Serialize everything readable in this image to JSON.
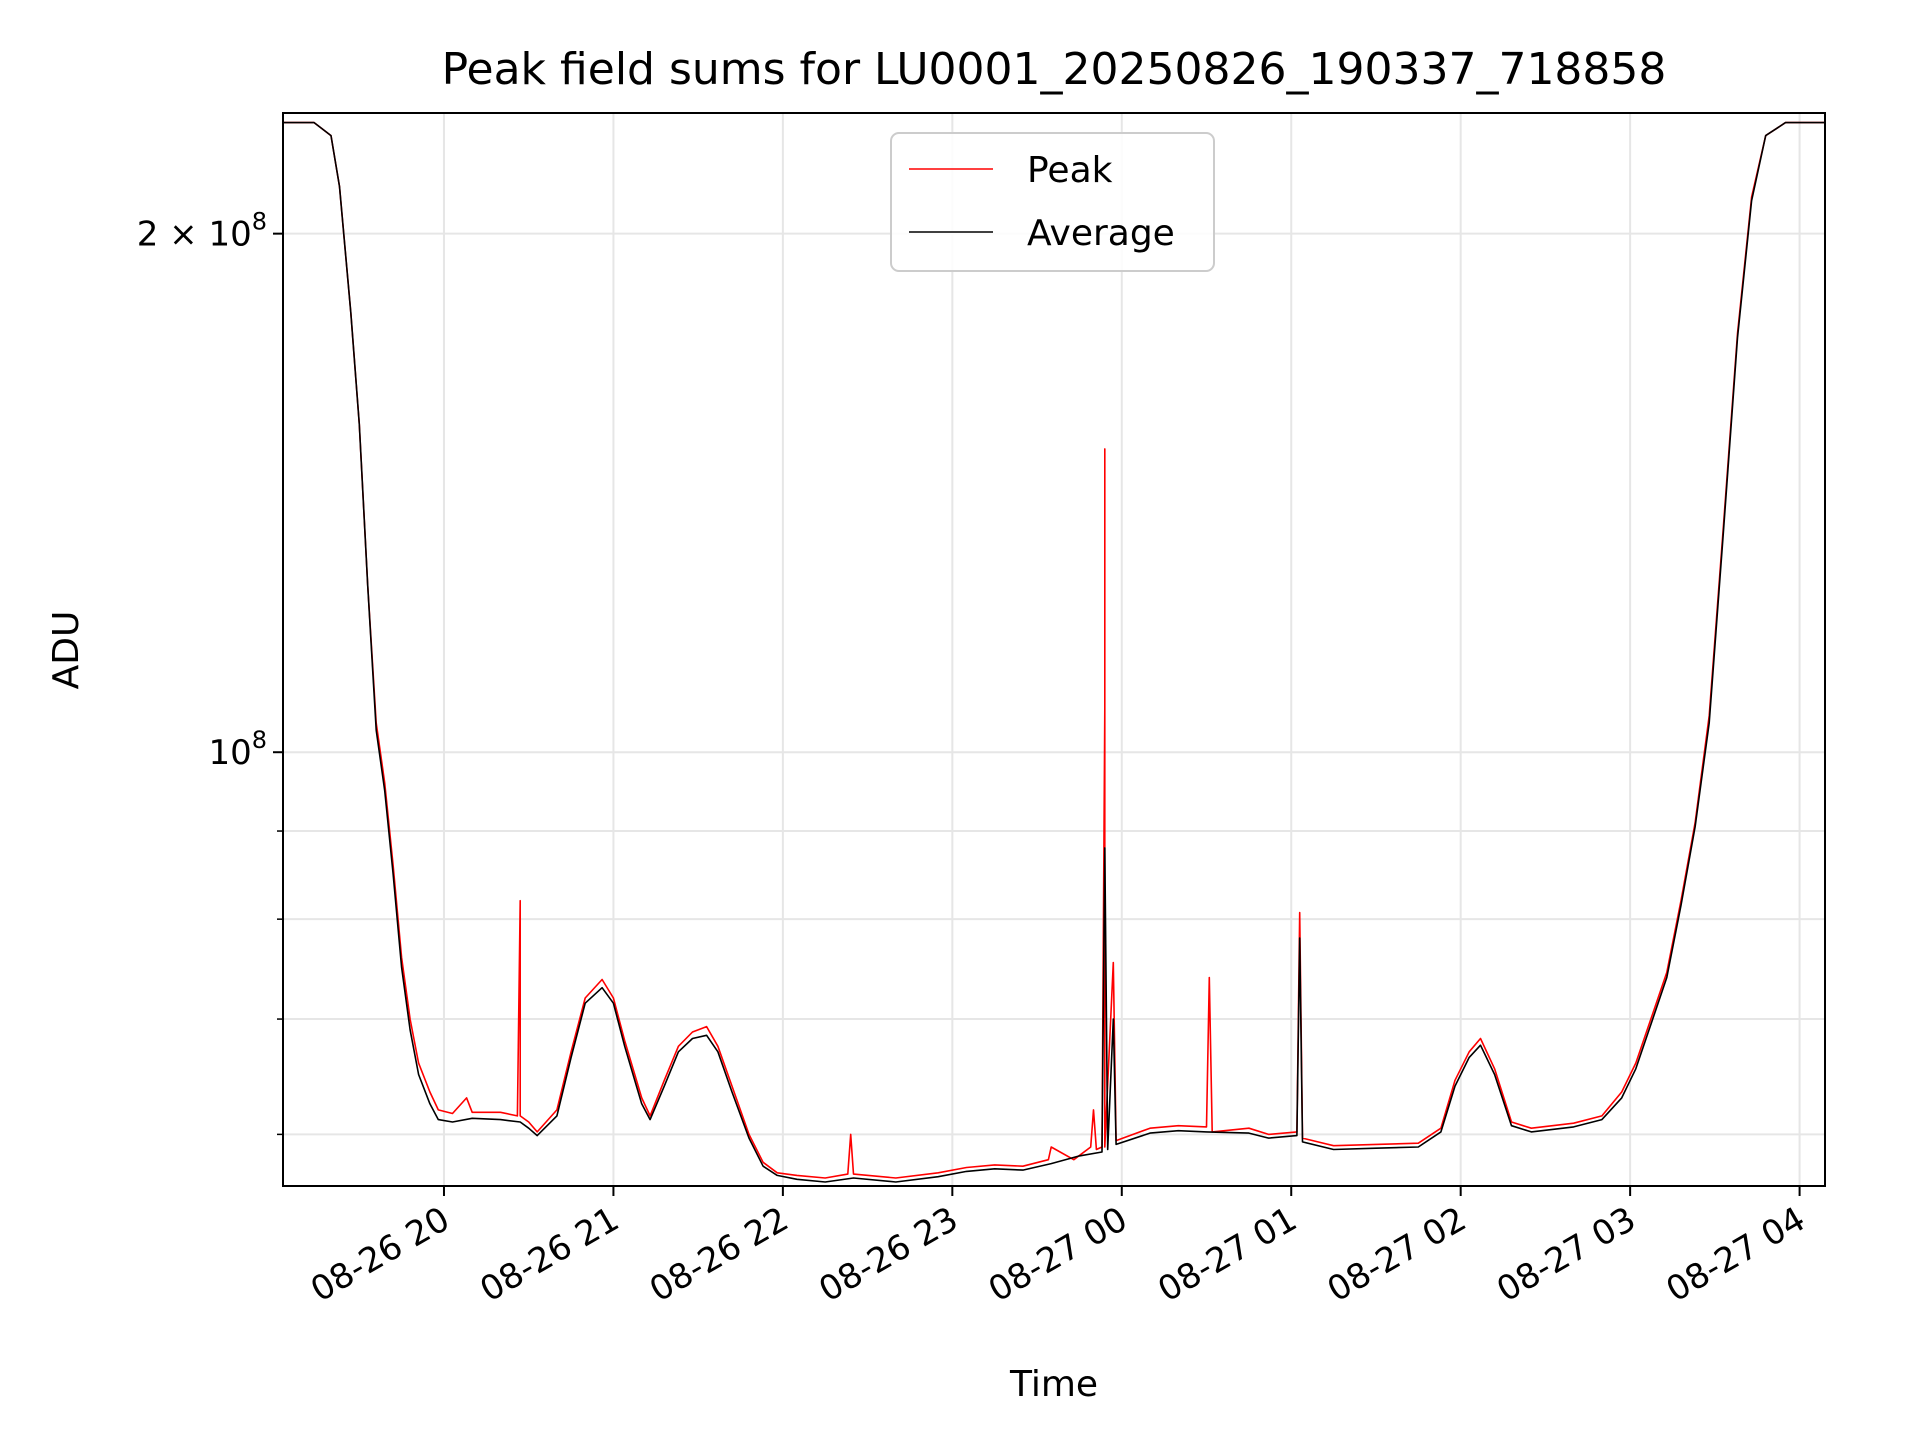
{
  "chart_data": {
    "type": "line",
    "title": "Peak field sums for LU0001_20250826_190337_718858",
    "xlabel": "Time",
    "ylabel": "ADU",
    "yscale": "log",
    "xlim": [
      "2025-08-26 19:03",
      "2025-08-27 04:09"
    ],
    "ylim": [
      56000000,
      235000000
    ],
    "grid": true,
    "legend_position": "upper center",
    "x_ticks": [
      {
        "value": "2025-08-26 20:00",
        "label": "08-26 20"
      },
      {
        "value": "2025-08-26 21:00",
        "label": "08-26 21"
      },
      {
        "value": "2025-08-26 22:00",
        "label": "08-26 22"
      },
      {
        "value": "2025-08-26 23:00",
        "label": "08-26 23"
      },
      {
        "value": "2025-08-27 00:00",
        "label": "08-27 00"
      },
      {
        "value": "2025-08-27 01:00",
        "label": "08-27 01"
      },
      {
        "value": "2025-08-27 02:00",
        "label": "08-27 02"
      },
      {
        "value": "2025-08-27 03:00",
        "label": "08-27 03"
      },
      {
        "value": "2025-08-27 04:00",
        "label": "08-27 04"
      }
    ],
    "y_major_ticks": [
      {
        "value": 100000000,
        "label": "10",
        "exp": "8",
        "prefix": ""
      },
      {
        "value": 200000000,
        "label": "10",
        "exp": "8",
        "prefix": "2 × "
      }
    ],
    "y_minor_ticks": [
      60000000,
      70000000,
      80000000,
      90000000
    ],
    "series": [
      {
        "name": "Peak",
        "color": "#ff0000",
        "points": [
          [
            "2025-08-26 19:03",
            232000000
          ],
          [
            "2025-08-26 19:14",
            232000000
          ],
          [
            "2025-08-26 19:20",
            228000000
          ],
          [
            "2025-08-26 19:23",
            213000000
          ],
          [
            "2025-08-26 19:27",
            180000000
          ],
          [
            "2025-08-26 19:30",
            155000000
          ],
          [
            "2025-08-26 19:33",
            125000000
          ],
          [
            "2025-08-26 19:36",
            104000000
          ],
          [
            "2025-08-26 19:39",
            96000000
          ],
          [
            "2025-08-26 19:42",
            86000000
          ],
          [
            "2025-08-26 19:45",
            76000000
          ],
          [
            "2025-08-26 19:48",
            70000000
          ],
          [
            "2025-08-26 19:51",
            66000000
          ],
          [
            "2025-08-26 19:55",
            63500000
          ],
          [
            "2025-08-26 19:58",
            62000000
          ],
          [
            "2025-08-26 20:03",
            61700000
          ],
          [
            "2025-08-26 20:08",
            63000000
          ],
          [
            "2025-08-26 20:10",
            61800000
          ],
          [
            "2025-08-26 20:20",
            61800000
          ],
          [
            "2025-08-26 20:26",
            61500000
          ],
          [
            "2025-08-26 20:27",
            82000000
          ],
          [
            "2025-08-26 20:27",
            61500000
          ],
          [
            "2025-08-26 20:30",
            61000000
          ],
          [
            "2025-08-26 20:33",
            60200000
          ],
          [
            "2025-08-26 20:40",
            62000000
          ],
          [
            "2025-08-26 20:45",
            67000000
          ],
          [
            "2025-08-26 20:50",
            72000000
          ],
          [
            "2025-08-26 20:56",
            73800000
          ],
          [
            "2025-08-26 21:00",
            72000000
          ],
          [
            "2025-08-26 21:04",
            68000000
          ],
          [
            "2025-08-26 21:10",
            63000000
          ],
          [
            "2025-08-26 21:13",
            61500000
          ],
          [
            "2025-08-26 21:18",
            64500000
          ],
          [
            "2025-08-26 21:23",
            67500000
          ],
          [
            "2025-08-26 21:28",
            68800000
          ],
          [
            "2025-08-26 21:33",
            69300000
          ],
          [
            "2025-08-26 21:37",
            67500000
          ],
          [
            "2025-08-26 21:42",
            64000000
          ],
          [
            "2025-08-26 21:48",
            60000000
          ],
          [
            "2025-08-26 21:53",
            57800000
          ],
          [
            "2025-08-26 21:58",
            57000000
          ],
          [
            "2025-08-26 22:05",
            56800000
          ],
          [
            "2025-08-26 22:15",
            56600000
          ],
          [
            "2025-08-26 22:23",
            56900000
          ],
          [
            "2025-08-26 22:24",
            60000000
          ],
          [
            "2025-08-26 22:25",
            56900000
          ],
          [
            "2025-08-26 22:40",
            56600000
          ],
          [
            "2025-08-26 22:55",
            57000000
          ],
          [
            "2025-08-26 23:05",
            57400000
          ],
          [
            "2025-08-26 23:15",
            57600000
          ],
          [
            "2025-08-26 23:25",
            57500000
          ],
          [
            "2025-08-26 23:34",
            58000000
          ],
          [
            "2025-08-26 23:35",
            59000000
          ],
          [
            "2025-08-26 23:43",
            58000000
          ],
          [
            "2025-08-26 23:49",
            59000000
          ],
          [
            "2025-08-26 23:50",
            62000000
          ],
          [
            "2025-08-26 23:51",
            58800000
          ],
          [
            "2025-08-26 23:53",
            59000000
          ],
          [
            "2025-08-26 23:54",
            106000000
          ],
          [
            "2025-08-26 23:54",
            150000000
          ],
          [
            "2025-08-26 23:54",
            59000000
          ],
          [
            "2025-08-26 23:57",
            75500000
          ],
          [
            "2025-08-26 23:58",
            59500000
          ],
          [
            "2025-08-27 00:10",
            60500000
          ],
          [
            "2025-08-27 00:20",
            60700000
          ],
          [
            "2025-08-27 00:30",
            60600000
          ],
          [
            "2025-08-27 00:31",
            74000000
          ],
          [
            "2025-08-27 00:32",
            60200000
          ],
          [
            "2025-08-27 00:45",
            60500000
          ],
          [
            "2025-08-27 00:52",
            60000000
          ],
          [
            "2025-08-27 01:02",
            60200000
          ],
          [
            "2025-08-27 01:03",
            80700000
          ],
          [
            "2025-08-27 01:04",
            59700000
          ],
          [
            "2025-08-27 01:15",
            59100000
          ],
          [
            "2025-08-27 01:30",
            59200000
          ],
          [
            "2025-08-27 01:45",
            59300000
          ],
          [
            "2025-08-27 01:53",
            60500000
          ],
          [
            "2025-08-27 01:58",
            64500000
          ],
          [
            "2025-08-27 02:03",
            67000000
          ],
          [
            "2025-08-27 02:07",
            68200000
          ],
          [
            "2025-08-27 02:12",
            65500000
          ],
          [
            "2025-08-27 02:18",
            61000000
          ],
          [
            "2025-08-27 02:25",
            60500000
          ],
          [
            "2025-08-27 02:40",
            60900000
          ],
          [
            "2025-08-27 02:50",
            61500000
          ],
          [
            "2025-08-27 02:57",
            63500000
          ],
          [
            "2025-08-27 03:02",
            66000000
          ],
          [
            "2025-08-27 03:08",
            70500000
          ],
          [
            "2025-08-27 03:13",
            74500000
          ],
          [
            "2025-08-27 03:18",
            82000000
          ],
          [
            "2025-08-27 03:23",
            91000000
          ],
          [
            "2025-08-27 03:28",
            105000000
          ],
          [
            "2025-08-27 03:33",
            135000000
          ],
          [
            "2025-08-27 03:38",
            175000000
          ],
          [
            "2025-08-27 03:43",
            210000000
          ],
          [
            "2025-08-27 03:48",
            228000000
          ],
          [
            "2025-08-27 03:55",
            232000000
          ],
          [
            "2025-08-27 04:09",
            232000000
          ]
        ]
      },
      {
        "name": "Average",
        "color": "#000000",
        "points": [
          [
            "2025-08-26 19:03",
            232000000
          ],
          [
            "2025-08-26 19:14",
            232000000
          ],
          [
            "2025-08-26 19:20",
            228000000
          ],
          [
            "2025-08-26 19:23",
            213000000
          ],
          [
            "2025-08-26 19:27",
            180000000
          ],
          [
            "2025-08-26 19:30",
            155000000
          ],
          [
            "2025-08-26 19:33",
            125000000
          ],
          [
            "2025-08-26 19:36",
            103000000
          ],
          [
            "2025-08-26 19:39",
            95000000
          ],
          [
            "2025-08-26 19:42",
            85000000
          ],
          [
            "2025-08-26 19:45",
            75000000
          ],
          [
            "2025-08-26 19:48",
            69000000
          ],
          [
            "2025-08-26 19:51",
            65000000
          ],
          [
            "2025-08-26 19:55",
            62500000
          ],
          [
            "2025-08-26 19:58",
            61200000
          ],
          [
            "2025-08-26 20:03",
            61000000
          ],
          [
            "2025-08-26 20:10",
            61300000
          ],
          [
            "2025-08-26 20:20",
            61200000
          ],
          [
            "2025-08-26 20:27",
            61000000
          ],
          [
            "2025-08-26 20:30",
            60500000
          ],
          [
            "2025-08-26 20:33",
            59900000
          ],
          [
            "2025-08-26 20:40",
            61500000
          ],
          [
            "2025-08-26 20:45",
            66500000
          ],
          [
            "2025-08-26 20:50",
            71500000
          ],
          [
            "2025-08-26 20:56",
            73000000
          ],
          [
            "2025-08-26 21:00",
            71500000
          ],
          [
            "2025-08-26 21:04",
            67500000
          ],
          [
            "2025-08-26 21:10",
            62500000
          ],
          [
            "2025-08-26 21:13",
            61200000
          ],
          [
            "2025-08-26 21:18",
            64000000
          ],
          [
            "2025-08-26 21:23",
            67000000
          ],
          [
            "2025-08-26 21:28",
            68200000
          ],
          [
            "2025-08-26 21:33",
            68500000
          ],
          [
            "2025-08-26 21:37",
            67000000
          ],
          [
            "2025-08-26 21:42",
            63500000
          ],
          [
            "2025-08-26 21:48",
            59700000
          ],
          [
            "2025-08-26 21:53",
            57500000
          ],
          [
            "2025-08-26 21:58",
            56800000
          ],
          [
            "2025-08-26 22:05",
            56500000
          ],
          [
            "2025-08-26 22:15",
            56300000
          ],
          [
            "2025-08-26 22:25",
            56600000
          ],
          [
            "2025-08-26 22:40",
            56300000
          ],
          [
            "2025-08-26 22:55",
            56700000
          ],
          [
            "2025-08-26 23:05",
            57100000
          ],
          [
            "2025-08-26 23:15",
            57300000
          ],
          [
            "2025-08-26 23:25",
            57200000
          ],
          [
            "2025-08-26 23:35",
            57700000
          ],
          [
            "2025-08-26 23:45",
            58300000
          ],
          [
            "2025-08-26 23:53",
            58600000
          ],
          [
            "2025-08-26 23:54",
            88000000
          ],
          [
            "2025-08-26 23:55",
            58800000
          ],
          [
            "2025-08-26 23:57",
            70000000
          ],
          [
            "2025-08-26 23:58",
            59200000
          ],
          [
            "2025-08-27 00:10",
            60100000
          ],
          [
            "2025-08-27 00:20",
            60300000
          ],
          [
            "2025-08-27 00:30",
            60200000
          ],
          [
            "2025-08-27 00:45",
            60100000
          ],
          [
            "2025-08-27 00:52",
            59700000
          ],
          [
            "2025-08-27 01:02",
            59900000
          ],
          [
            "2025-08-27 01:03",
            78000000
          ],
          [
            "2025-08-27 01:04",
            59400000
          ],
          [
            "2025-08-27 01:15",
            58800000
          ],
          [
            "2025-08-27 01:30",
            58900000
          ],
          [
            "2025-08-27 01:45",
            59000000
          ],
          [
            "2025-08-27 01:53",
            60200000
          ],
          [
            "2025-08-27 01:58",
            64000000
          ],
          [
            "2025-08-27 02:03",
            66500000
          ],
          [
            "2025-08-27 02:07",
            67600000
          ],
          [
            "2025-08-27 02:12",
            65000000
          ],
          [
            "2025-08-27 02:18",
            60700000
          ],
          [
            "2025-08-27 02:25",
            60200000
          ],
          [
            "2025-08-27 02:40",
            60600000
          ],
          [
            "2025-08-27 02:50",
            61200000
          ],
          [
            "2025-08-27 02:57",
            63000000
          ],
          [
            "2025-08-27 03:02",
            65500000
          ],
          [
            "2025-08-27 03:08",
            70000000
          ],
          [
            "2025-08-27 03:13",
            74000000
          ],
          [
            "2025-08-27 03:18",
            81500000
          ],
          [
            "2025-08-27 03:23",
            90500000
          ],
          [
            "2025-08-27 03:28",
            104000000
          ],
          [
            "2025-08-27 03:33",
            134000000
          ],
          [
            "2025-08-27 03:38",
            174000000
          ],
          [
            "2025-08-27 03:43",
            209000000
          ],
          [
            "2025-08-27 03:48",
            228000000
          ],
          [
            "2025-08-27 03:55",
            232000000
          ],
          [
            "2025-08-27 04:09",
            232000000
          ]
        ]
      }
    ]
  }
}
